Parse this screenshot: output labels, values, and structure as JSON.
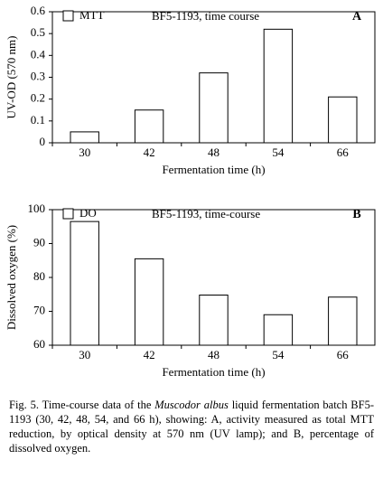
{
  "chart_data": [
    {
      "type": "bar",
      "panel": "A",
      "annotation": "BF5-1193, time course",
      "legend": "MTT",
      "x_label": "Fermentation time (h)",
      "y_label": "UV-OD (570 nm)",
      "categories": [
        "30",
        "42",
        "48",
        "54",
        "66"
      ],
      "values": [
        0.05,
        0.15,
        0.32,
        0.52,
        0.21
      ],
      "color": "#ffffff",
      "ylim": [
        0,
        0.6
      ],
      "yticks": [
        0,
        0.1,
        0.2,
        0.3,
        0.4,
        0.5,
        0.6
      ]
    },
    {
      "type": "bar",
      "panel": "B",
      "annotation": "BF5-1193, time-course",
      "legend": "DO",
      "x_label": "Fermentation time (h)",
      "y_label": "Dissolved oxygen (%)",
      "categories": [
        "30",
        "42",
        "48",
        "54",
        "66"
      ],
      "values": [
        96.5,
        85.5,
        74.8,
        69,
        74.2
      ],
      "color": "#ffffff",
      "ylim": [
        60,
        100
      ],
      "yticks": [
        60,
        70,
        80,
        90,
        100
      ]
    }
  ],
  "caption": {
    "label": "Fig. 5.",
    "text_before": "Time-course data of the",
    "italic": "Muscodor albus",
    "text_after": "liquid fermentation batch BF5-1193 (30, 42, 48, 54, and 66 h), showing: A, activity measured as total MTT reduction, by optical density at 570 nm (UV lamp); and B, percentage of dissolved oxygen."
  }
}
